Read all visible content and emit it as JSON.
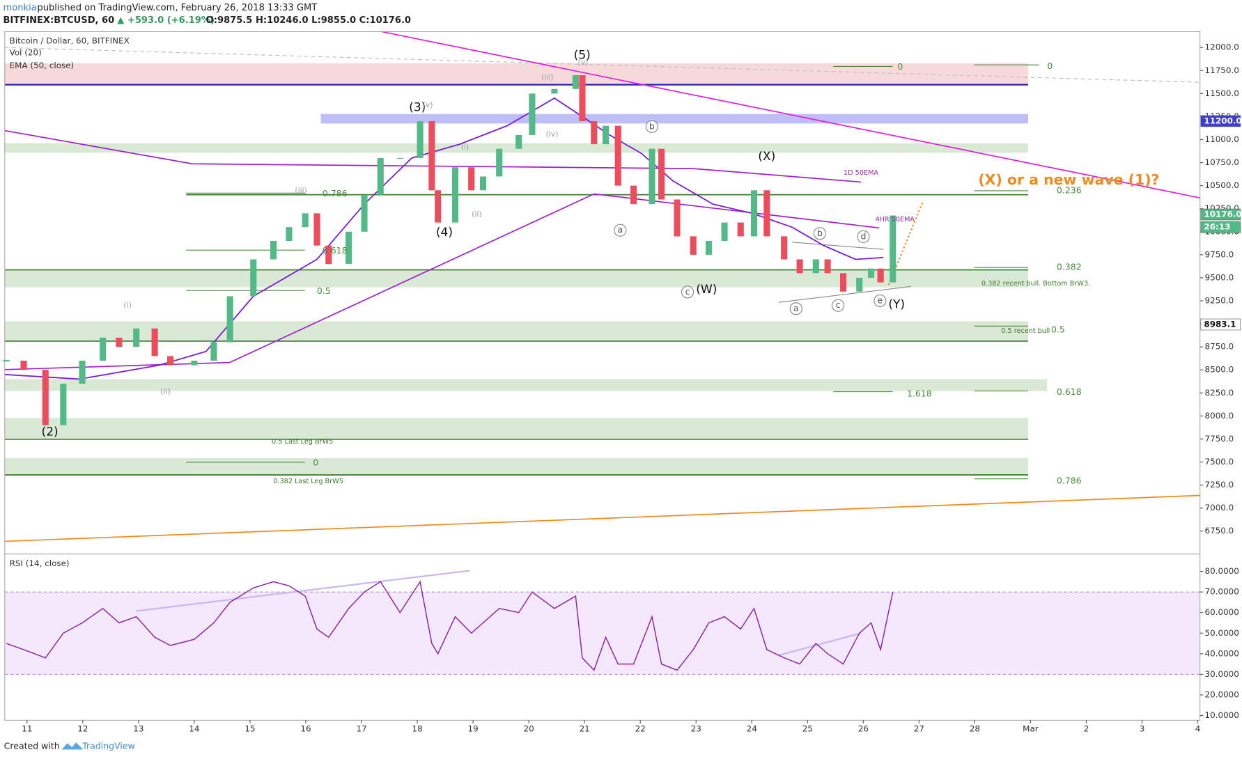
{
  "chart_data": {
    "type": "candlestick",
    "author": "monkia",
    "published": "published on TradingView.com, February 26, 2018 13:33 GMT",
    "symbol_line": "BITFINEX:BTCUSD, 60",
    "change": "▲ +593.0 (+6.19%)",
    "ohlc": "O:9875.5 H:10246.0 L:9855.0 C:10176.0",
    "title": "Bitcoin / Dollar, 60, BITFINEX",
    "indicators": [
      "Vol (20)",
      "EMA (50, close)"
    ],
    "rsi_title": "RSI (14, close)",
    "footer": "Created with",
    "footer_brand": "TradingView",
    "price_markers": [
      "11200.0",
      "10176.0",
      "26:13",
      "8983.1"
    ],
    "xlim": [
      -0.4,
      21.04
    ],
    "xticks": [
      {
        "value": 0,
        "label": "11"
      },
      {
        "value": 1,
        "label": "12"
      },
      {
        "value": 2,
        "label": "13"
      },
      {
        "value": 3,
        "label": "14"
      },
      {
        "value": 4,
        "label": "15"
      },
      {
        "value": 5,
        "label": "16"
      },
      {
        "value": 6,
        "label": "17"
      },
      {
        "value": 7,
        "label": "18"
      },
      {
        "value": 8,
        "label": "19"
      },
      {
        "value": 9,
        "label": "20"
      },
      {
        "value": 10,
        "label": "21"
      },
      {
        "value": 11,
        "label": "22"
      },
      {
        "value": 12,
        "label": "23"
      },
      {
        "value": 13,
        "label": "24"
      },
      {
        "value": 14,
        "label": "25"
      },
      {
        "value": 15,
        "label": "26"
      },
      {
        "value": 16,
        "label": "27"
      },
      {
        "value": 17,
        "label": "28"
      },
      {
        "value": 18,
        "label": "Mar"
      },
      {
        "value": 19,
        "label": "2"
      },
      {
        "value": 20,
        "label": "3"
      },
      {
        "value": 21,
        "label": "4"
      }
    ],
    "ylim": [
      6527,
      12172
    ],
    "yticks": [
      {
        "value": 6750,
        "label": "6750.0"
      },
      {
        "value": 7000,
        "label": "7000.0"
      },
      {
        "value": 7250,
        "label": "7250.0"
      },
      {
        "value": 7500,
        "label": "7500.0"
      },
      {
        "value": 7750,
        "label": "7750.0"
      },
      {
        "value": 8000,
        "label": "8000.0"
      },
      {
        "value": 8250,
        "label": "8250.0"
      },
      {
        "value": 8500,
        "label": "8500.0"
      },
      {
        "value": 8750,
        "label": "8750.0"
      },
      {
        "value": 9000,
        "label": "9000.0"
      },
      {
        "value": 9250,
        "label": "9250.0"
      },
      {
        "value": 9500,
        "label": "9500.0"
      },
      {
        "value": 9750,
        "label": "9750.0"
      },
      {
        "value": 10000,
        "label": "10000.0"
      },
      {
        "value": 10250,
        "label": "10250.0"
      },
      {
        "value": 10500,
        "label": "10500.0"
      },
      {
        "value": 10750,
        "label": "10750.0"
      },
      {
        "value": 11000,
        "label": "11000.0"
      },
      {
        "value": 11250,
        "label": "11250.0"
      },
      {
        "value": 11500,
        "label": "11500.0"
      },
      {
        "value": 11750,
        "label": "11750.0"
      },
      {
        "value": 12000,
        "label": "12000.0"
      }
    ],
    "x": [
      -0.37,
      -0.06,
      0.33,
      0.65,
      0.99,
      1.36,
      1.65,
      1.96,
      2.29,
      2.57,
      3.0,
      3.35,
      3.64,
      4.06,
      4.42,
      4.7,
      4.99,
      5.2,
      5.41,
      5.77,
      6.05,
      6.34,
      6.69,
      7.05,
      7.26,
      7.37,
      7.68,
      7.97,
      8.18,
      8.47,
      8.82,
      9.06,
      9.46,
      9.84,
      9.96,
      10.17,
      10.38,
      10.6,
      10.88,
      11.21,
      11.38,
      11.66,
      11.95,
      12.23,
      12.51,
      12.8,
      13.04,
      13.27,
      13.58,
      13.86,
      14.15,
      14.36,
      14.64,
      14.93,
      15.14,
      15.31,
      15.53
    ],
    "close": [
      8600,
      8500,
      7900,
      8350,
      8600,
      8850,
      8750,
      8950,
      8650,
      8550,
      8600,
      8800,
      9300,
      9700,
      9900,
      10050,
      10200,
      9850,
      9650,
      10000,
      10400,
      10800,
      10800,
      11200,
      10450,
      10100,
      10700,
      10450,
      10600,
      10900,
      11050,
      11500,
      11550,
      11700,
      11200,
      10950,
      11150,
      10500,
      10300,
      10900,
      10350,
      9950,
      9750,
      9900,
      10100,
      9950,
      10450,
      9950,
      9700,
      9550,
      9700,
      9550,
      9350,
      9500,
      9600,
      9450,
      10176
    ],
    "up_color": "#53b987",
    "down_color": "#eb4d5c",
    "ema": {
      "name": "EMA (50, close)",
      "color": "#7b1fd8",
      "x": [
        -0.4,
        0.94,
        2.36,
        3.21,
        4.06,
        5.2,
        6.05,
        6.9,
        7.76,
        8.61,
        9.46,
        9.96,
        10.45,
        11.02,
        11.59,
        12.3,
        13.01,
        13.72,
        14.29,
        14.86,
        15.36
      ],
      "values": [
        8450,
        8400,
        8550,
        8700,
        9300,
        9700,
        10300,
        10800,
        10950,
        11150,
        11450,
        11250,
        11050,
        10850,
        10550,
        10300,
        10200,
        10050,
        9850,
        9700,
        9720
      ]
    },
    "rsi": {
      "color": "#8e24aa",
      "ylim": [
        7.7,
        87.3
      ],
      "yticks": [
        {
          "value": 10,
          "label": "10.0000"
        },
        {
          "value": 20,
          "label": "20.0000"
        },
        {
          "value": 30,
          "label": "30.0000"
        },
        {
          "value": 40,
          "label": "40.0000"
        },
        {
          "value": 50,
          "label": "50.0000"
        },
        {
          "value": 60,
          "label": "60.0000"
        },
        {
          "value": 70,
          "label": "70.0000"
        },
        {
          "value": 80,
          "label": "80.0000"
        }
      ],
      "band": [
        30,
        70
      ],
      "values": [
        45,
        42,
        38,
        50,
        55,
        62,
        55,
        58,
        48,
        44,
        47,
        55,
        65,
        72,
        75,
        73,
        68,
        52,
        48,
        62,
        70,
        75,
        60,
        75,
        45,
        40,
        58,
        50,
        55,
        62,
        60,
        70,
        62,
        68,
        38,
        32,
        48,
        35,
        35,
        58,
        35,
        32,
        42,
        55,
        58,
        52,
        62,
        42,
        38,
        35,
        45,
        40,
        35,
        50,
        55,
        42,
        70
      ]
    },
    "annotations": [
      "(2)",
      "(3)",
      "(4)",
      "(5)",
      "(X)",
      "(W)",
      "(Y)",
      "(i)",
      "(ii)",
      "(iii)",
      "(iii)",
      "(i)",
      "(ii)",
      "(iv)",
      "(v)",
      "(v)",
      "a",
      "b",
      "c",
      "a",
      "b",
      "c",
      "d",
      "e",
      "0",
      "0",
      "0.236",
      "0.382",
      "0.5",
      "0.618",
      "0.786",
      "1.618",
      "0.786",
      "0.618",
      "0.5",
      "0",
      "0.382 recent bull. Bottom BrW3.",
      "0.5 recent bull",
      "0.5 Last Leg BrW5",
      "0.382 Last Leg BrW5",
      "1D 50EMA",
      "4HR 50EMA",
      "(X) or a new wave (1)?"
    ]
  }
}
